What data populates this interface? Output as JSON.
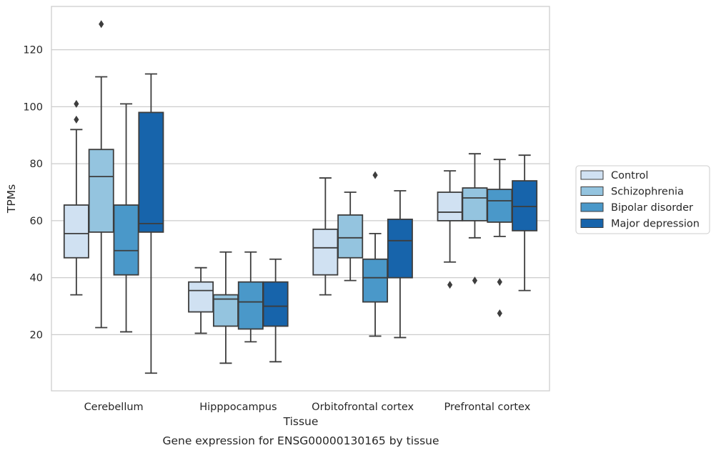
{
  "chart_data": {
    "type": "box",
    "caption": "Gene expression for ENSG00000130165 by tissue",
    "xlabel": "Tissue",
    "ylabel": "TPMs",
    "ylim": [
      0.3,
      135.2
    ],
    "yticks": [
      20,
      40,
      60,
      80,
      100,
      120
    ],
    "grid": "horizontal",
    "legend_position": "right",
    "categories": [
      "Cerebellum",
      "Hipppocampus",
      "Orbitofrontal cortex",
      "Prefrontal cortex"
    ],
    "series": [
      {
        "name": "Control",
        "color": "#d0e1f2",
        "boxes": [
          {
            "whisker_low": 34,
            "q1": 47,
            "median": 55.5,
            "q3": 65.5,
            "whisker_high": 92,
            "outliers": [
              95.5,
              101
            ]
          },
          {
            "whisker_low": 20.5,
            "q1": 28,
            "median": 35.5,
            "q3": 38.5,
            "whisker_high": 43.5,
            "outliers": []
          },
          {
            "whisker_low": 34,
            "q1": 41,
            "median": 50.5,
            "q3": 57,
            "whisker_high": 75,
            "outliers": []
          },
          {
            "whisker_low": 45.5,
            "q1": 60,
            "median": 63,
            "q3": 70,
            "whisker_high": 77.5,
            "outliers": [
              37.5
            ]
          }
        ]
      },
      {
        "name": "Schizophrenia",
        "color": "#94c4df",
        "boxes": [
          {
            "whisker_low": 22.5,
            "q1": 56,
            "median": 75.5,
            "q3": 85,
            "whisker_high": 110.5,
            "outliers": [
              129
            ]
          },
          {
            "whisker_low": 10,
            "q1": 23,
            "median": 32.5,
            "q3": 34,
            "whisker_high": 49,
            "outliers": []
          },
          {
            "whisker_low": 39,
            "q1": 47,
            "median": 54,
            "q3": 62,
            "whisker_high": 70,
            "outliers": []
          },
          {
            "whisker_low": 54,
            "q1": 60,
            "median": 68,
            "q3": 71.5,
            "whisker_high": 83.5,
            "outliers": [
              39
            ]
          }
        ]
      },
      {
        "name": "Bipolar disorder",
        "color": "#4a98c9",
        "boxes": [
          {
            "whisker_low": 21,
            "q1": 41,
            "median": 49.5,
            "q3": 65.5,
            "whisker_high": 101,
            "outliers": []
          },
          {
            "whisker_low": 17.5,
            "q1": 22,
            "median": 31.5,
            "q3": 38.5,
            "whisker_high": 49,
            "outliers": []
          },
          {
            "whisker_low": 19.5,
            "q1": 31.5,
            "median": 40,
            "q3": 46.5,
            "whisker_high": 55.5,
            "outliers": [
              76
            ]
          },
          {
            "whisker_low": 54.5,
            "q1": 59.5,
            "median": 67,
            "q3": 71,
            "whisker_high": 81.5,
            "outliers": [
              38.5,
              27.5
            ]
          }
        ]
      },
      {
        "name": "Major depression",
        "color": "#1764ab",
        "boxes": [
          {
            "whisker_low": 6.5,
            "q1": 56,
            "median": 59,
            "q3": 98,
            "whisker_high": 111.5,
            "outliers": []
          },
          {
            "whisker_low": 10.5,
            "q1": 23,
            "median": 30,
            "q3": 38.5,
            "whisker_high": 46.5,
            "outliers": []
          },
          {
            "whisker_low": 19,
            "q1": 40,
            "median": 53,
            "q3": 60.5,
            "whisker_high": 70.5,
            "outliers": []
          },
          {
            "whisker_low": 35.5,
            "q1": 56.5,
            "median": 65,
            "q3": 74,
            "whisker_high": 83,
            "outliers": []
          }
        ]
      }
    ]
  }
}
